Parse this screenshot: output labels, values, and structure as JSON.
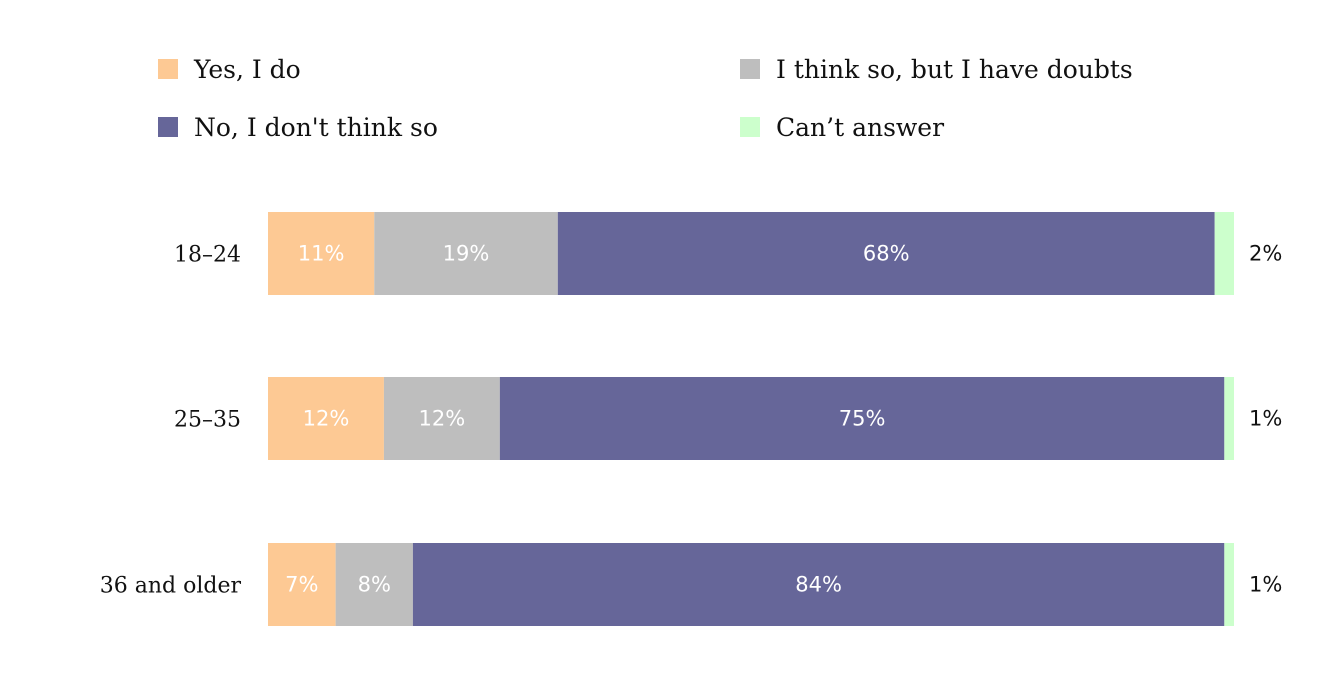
{
  "chart_data": {
    "type": "bar",
    "orientation": "horizontal",
    "stacked": true,
    "categories": [
      "18–24",
      "25–35",
      "36 and older"
    ],
    "series": [
      {
        "name": "Yes, I do",
        "values": [
          11,
          12,
          7
        ],
        "color": "#FDC994",
        "labels": [
          "11%",
          "12%",
          "7%"
        ]
      },
      {
        "name": "I think so, but I have doubts",
        "values": [
          19,
          12,
          8
        ],
        "color": "#BEBEBE",
        "labels": [
          "19%",
          "12%",
          "8%"
        ]
      },
      {
        "name": "No, I don't think so",
        "values": [
          68,
          75,
          84
        ],
        "color": "#666699",
        "labels": [
          "68%",
          "75%",
          "84%"
        ]
      },
      {
        "name": "Can’t answer",
        "values": [
          2,
          1,
          1
        ],
        "color": "#CCFFCC",
        "labels": [
          "2%",
          "1%",
          "1%"
        ]
      }
    ],
    "unit": "%",
    "legend_position": "top",
    "grid": false
  }
}
